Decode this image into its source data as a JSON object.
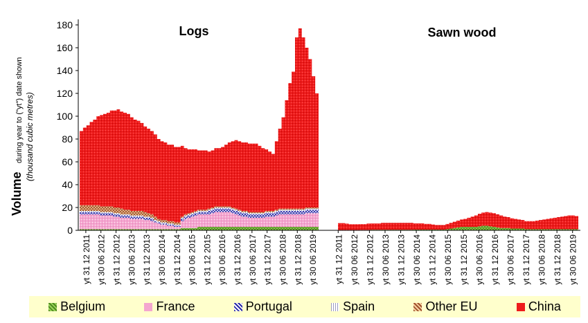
{
  "chart_data": {
    "type": "area",
    "ylabel_main": "Volume",
    "ylabel_note": "during year to (\"yt\") date shown",
    "ylabel_unit": "(thousand cubic metres)",
    "ylim": [
      0,
      180
    ],
    "yticks": [
      0,
      20,
      40,
      60,
      80,
      100,
      120,
      140,
      160,
      180
    ],
    "x_tick_labels": [
      "yt 31 12 2011",
      "yt 30 06 2012",
      "yt 31 12 2012",
      "yt 30 06 2013",
      "yt 31 12 2013",
      "yt 30 06 2014",
      "yt 31 12 2014",
      "yt 30 06 2015",
      "yt 31 12 2015",
      "yt 30 06 2016",
      "yt 31 12 2016",
      "yt 30 06 2017",
      "yt 31 12 2017",
      "yt 30 06 2018",
      "yt 31 12 2018",
      "yt 30 06 2019"
    ],
    "legend": {
      "items": [
        {
          "name": "Belgium",
          "color": "#7dc142"
        },
        {
          "name": "France",
          "color": "#f4a6cf"
        },
        {
          "name": "Portugal",
          "color": "#2a2aa8"
        },
        {
          "name": "Spain",
          "color": "#c9c9dd"
        },
        {
          "name": "Other EU",
          "color": "#a0522d"
        },
        {
          "name": "China",
          "color": "#ee1c1c"
        }
      ]
    },
    "panels": [
      {
        "title": "Logs",
        "series": [
          {
            "name": "Belgium",
            "values": [
              1,
              1,
              1,
              1,
              1,
              1,
              1,
              1,
              1,
              1,
              1,
              1,
              1,
              1,
              1,
              1,
              1,
              1,
              1,
              1,
              1,
              1,
              1,
              1,
              1,
              1,
              1,
              1,
              1,
              1,
              2,
              2,
              2,
              2,
              2,
              3,
              3,
              3,
              3,
              3,
              3,
              3,
              3,
              3,
              3,
              3,
              3,
              3,
              3,
              3,
              3,
              3,
              3,
              3,
              3,
              3,
              3,
              3,
              3,
              3,
              3,
              3,
              3,
              3,
              3,
              3,
              3,
              3,
              3,
              3,
              3
            ]
          },
          {
            "name": "France",
            "values": [
              13,
              13,
              13,
              13,
              13,
              13,
              12,
              12,
              12,
              12,
              11,
              11,
              10,
              10,
              10,
              9,
              9,
              9,
              9,
              8,
              8,
              7,
              6,
              5,
              4,
              4,
              3,
              3,
              2,
              2,
              6,
              8,
              9,
              10,
              11,
              11,
              11,
              11,
              11,
              12,
              13,
              13,
              13,
              13,
              13,
              12,
              11,
              10,
              9,
              9,
              8,
              8,
              8,
              8,
              8,
              9,
              9,
              9,
              10,
              11,
              11,
              11,
              11,
              11,
              11,
              11,
              11,
              12,
              12,
              12,
              12
            ]
          },
          {
            "name": "Portugal",
            "values": [
              2,
              2,
              2,
              2,
              2,
              2,
              2,
              2,
              2,
              2,
              2,
              2,
              2,
              2,
              2,
              2,
              2,
              2,
              2,
              2,
              2,
              2,
              1,
              1,
              1,
              1,
              1,
              1,
              1,
              1,
              2,
              2,
              2,
              2,
              2,
              2,
              2,
              2,
              3,
              3,
              3,
              3,
              3,
              3,
              3,
              3,
              3,
              3,
              3,
              3,
              3,
              3,
              3,
              3,
              3,
              3,
              3,
              3,
              3,
              3,
              3,
              3,
              3,
              3,
              3,
              3,
              3,
              3,
              3,
              3,
              3
            ]
          },
          {
            "name": "Spain",
            "values": [
              1,
              1,
              1,
              1,
              1,
              1,
              1,
              1,
              1,
              1,
              1,
              1,
              1,
              1,
              1,
              1,
              1,
              1,
              1,
              1,
              1,
              1,
              1,
              1,
              1,
              1,
              1,
              1,
              1,
              1,
              1,
              1,
              1,
              1,
              1,
              1,
              1,
              1,
              1,
              1,
              1,
              1,
              1,
              1,
              1,
              1,
              1,
              1,
              1,
              1,
              1,
              1,
              1,
              1,
              1,
              1,
              1,
              1,
              1,
              1,
              1,
              1,
              1,
              1,
              1,
              1,
              1,
              1,
              1,
              1,
              1
            ]
          },
          {
            "name": "Other EU",
            "values": [
              5,
              5,
              5,
              5,
              5,
              5,
              5,
              5,
              5,
              5,
              5,
              5,
              5,
              4,
              4,
              4,
              4,
              4,
              4,
              4,
              3,
              3,
              3,
              2,
              2,
              2,
              2,
              2,
              2,
              2,
              1,
              1,
              1,
              1,
              1,
              1,
              1,
              1,
              1,
              1,
              1,
              1,
              1,
              1,
              1,
              1,
              1,
              1,
              1,
              1,
              1,
              1,
              1,
              1,
              1,
              1,
              1,
              1,
              1,
              1,
              1,
              1,
              1,
              1,
              1,
              1,
              1,
              1,
              1,
              1,
              1
            ]
          },
          {
            "name": "China",
            "values": [
              65,
              68,
              70,
              73,
              75,
              78,
              80,
              81,
              82,
              84,
              85,
              86,
              85,
              85,
              84,
              82,
              80,
              79,
              77,
              75,
              74,
              73,
              72,
              70,
              69,
              68,
              67,
              67,
              66,
              66,
              62,
              58,
              56,
              55,
              54,
              52,
              52,
              52,
              50,
              50,
              51,
              51,
              52,
              54,
              56,
              58,
              60,
              60,
              60,
              60,
              60,
              60,
              60,
              58,
              56,
              54,
              52,
              50,
              60,
              70,
              80,
              95,
              110,
              120,
              150,
              158,
              150,
              140,
              130,
              115,
              100
            ]
          }
        ]
      },
      {
        "title": "Sawn wood",
        "series": [
          {
            "name": "Belgium",
            "values": [
              0.3,
              0.3,
              0.3,
              0.3,
              0.3,
              0.3,
              0.4,
              0.4,
              0.4,
              0.5,
              0.5,
              0.5,
              0.5,
              0.5,
              0.5,
              0.5,
              0.5,
              0.5,
              0.5,
              0.5,
              0.5,
              0.6,
              0.6,
              0.6,
              0.6,
              0.6,
              0.6,
              0.6,
              0.6,
              0.6,
              1,
              1.5,
              2,
              2.5,
              3,
              3,
              3,
              3,
              3,
              3.5,
              4,
              4,
              3.5,
              3,
              2.5,
              2,
              2,
              2,
              1.5,
              1.5,
              1.5,
              1.5,
              1,
              1,
              1,
              1,
              1,
              1,
              1,
              1,
              1,
              1,
              1,
              1,
              1,
              1,
              1
            ]
          },
          {
            "name": "China",
            "values": [
              6,
              6,
              5.5,
              5,
              5,
              5,
              5,
              5,
              5.5,
              5.5,
              5.5,
              5.5,
              6,
              6,
              6,
              6,
              6,
              6,
              6,
              6,
              6,
              5.5,
              5.5,
              5.5,
              5,
              5,
              4.5,
              4,
              4,
              4,
              4.5,
              5,
              5.5,
              6,
              6.5,
              7,
              8,
              9,
              10,
              11,
              11.5,
              12,
              12,
              12,
              11.5,
              11,
              10,
              9.5,
              9,
              8.5,
              8,
              7.5,
              7,
              7,
              7,
              7.5,
              8,
              8.5,
              9,
              9.5,
              10,
              10.5,
              11,
              11.5,
              12,
              12,
              11.5
            ]
          }
        ]
      }
    ]
  }
}
